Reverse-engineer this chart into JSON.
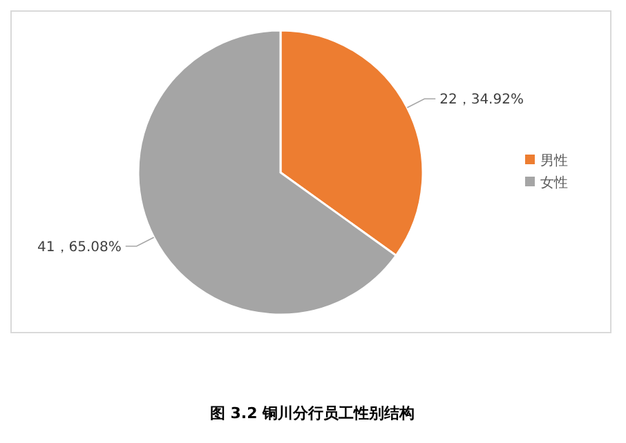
{
  "chart_data": {
    "type": "pie",
    "title": "图 3.2 铜川分行员工性别结构",
    "categories": [
      "男性",
      "女性"
    ],
    "values": [
      22,
      41
    ],
    "colors": [
      "#ed7d31",
      "#a5a5a5"
    ],
    "value_labels": [
      "22，34.92%",
      "41，65.08%"
    ],
    "legend": "right"
  }
}
